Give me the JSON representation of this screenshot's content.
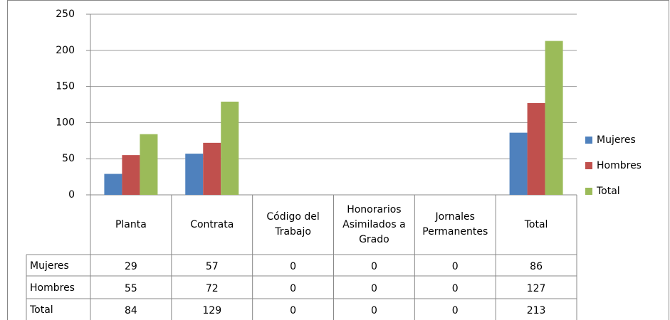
{
  "chart_data": {
    "type": "bar",
    "categories": [
      "Planta",
      "Contrata",
      "Código del Trabajo",
      "Honorarios Asimilados a Grado",
      "Jornales Permanentes",
      "Total"
    ],
    "series": [
      {
        "name": "Mujeres",
        "color": "#4f81bd",
        "values": [
          29,
          57,
          0,
          0,
          0,
          86
        ]
      },
      {
        "name": "Hombres",
        "color": "#c0504d",
        "values": [
          55,
          72,
          0,
          0,
          0,
          127
        ]
      },
      {
        "name": "Total",
        "color": "#9bbb59",
        "values": [
          84,
          129,
          0,
          0,
          0,
          213
        ]
      }
    ],
    "ylim": [
      0,
      250
    ],
    "yticks": [
      0,
      50,
      100,
      150,
      200,
      250
    ],
    "grid": true,
    "legend": "right"
  }
}
